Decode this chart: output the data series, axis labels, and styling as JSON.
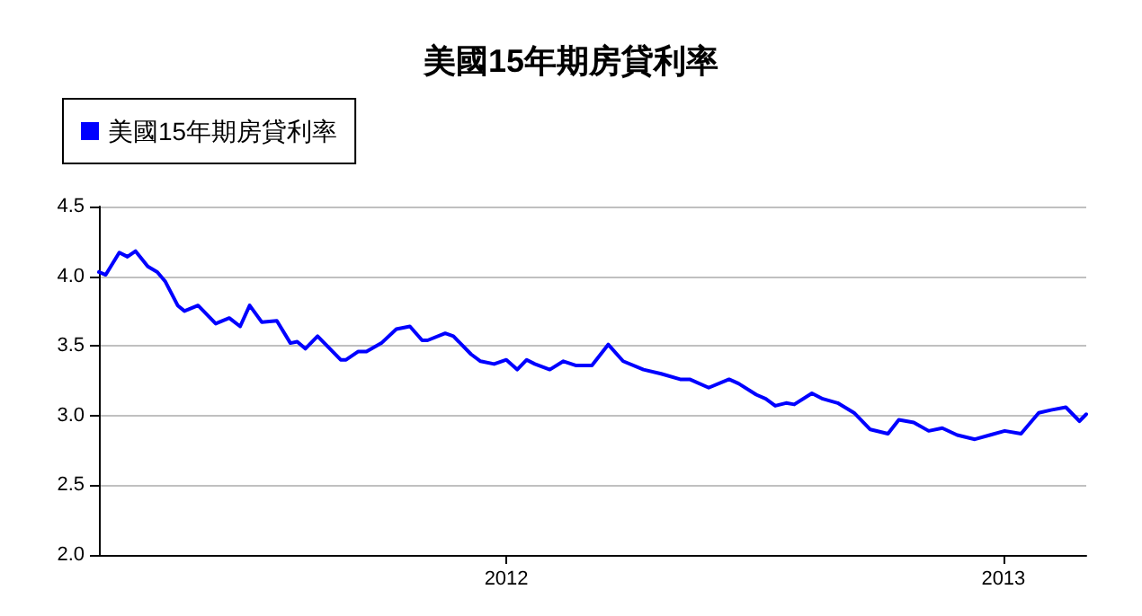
{
  "chart_data": {
    "type": "line",
    "title": "美國15年期房貸利率",
    "x": [
      "2011-03-07",
      "2011-03-12",
      "2011-03-22",
      "2011-03-28",
      "2011-04-03",
      "2011-04-12",
      "2011-04-19",
      "2011-04-25",
      "2011-05-04",
      "2011-05-09",
      "2011-05-19",
      "2011-06-01",
      "2011-06-11",
      "2011-06-19",
      "2011-06-26",
      "2011-07-05",
      "2011-07-16",
      "2011-07-26",
      "2011-07-31",
      "2011-08-06",
      "2011-08-15",
      "2011-08-21",
      "2011-09-01",
      "2011-09-05",
      "2011-09-14",
      "2011-09-20",
      "2011-10-01",
      "2011-10-12",
      "2011-10-22",
      "2011-10-31",
      "2011-11-04",
      "2011-11-17",
      "2011-11-23",
      "2011-12-06",
      "2011-12-13",
      "2011-12-23",
      "2012-01-01",
      "2012-01-09",
      "2012-01-16",
      "2012-01-22",
      "2012-02-02",
      "2012-02-12",
      "2012-02-21",
      "2012-03-04",
      "2012-03-16",
      "2012-03-27",
      "2012-04-11",
      "2012-04-24",
      "2012-05-08",
      "2012-05-15",
      "2012-05-29",
      "2012-06-13",
      "2012-06-20",
      "2012-07-03",
      "2012-07-10",
      "2012-07-17",
      "2012-07-25",
      "2012-07-31",
      "2012-08-13",
      "2012-08-21",
      "2012-09-01",
      "2012-09-13",
      "2012-09-25",
      "2012-10-08",
      "2012-10-16",
      "2012-10-27",
      "2012-11-07",
      "2012-11-17",
      "2012-11-28",
      "2012-12-11",
      "2012-12-22",
      "2013-01-02",
      "2013-01-14",
      "2013-01-27",
      "2013-02-05",
      "2013-02-16",
      "2013-02-26",
      "2013-03-03"
    ],
    "series": [
      {
        "name": "美國15年期房貸利率",
        "color": "#0000ff",
        "values": [
          4.03,
          4.01,
          4.17,
          4.14,
          4.18,
          4.07,
          4.03,
          3.96,
          3.79,
          3.75,
          3.79,
          3.66,
          3.7,
          3.64,
          3.79,
          3.67,
          3.68,
          3.52,
          3.53,
          3.48,
          3.57,
          3.51,
          3.4,
          3.4,
          3.46,
          3.46,
          3.52,
          3.62,
          3.64,
          3.54,
          3.54,
          3.59,
          3.57,
          3.44,
          3.39,
          3.37,
          3.4,
          3.33,
          3.4,
          3.37,
          3.33,
          3.39,
          3.36,
          3.36,
          3.51,
          3.39,
          3.33,
          3.3,
          3.26,
          3.26,
          3.2,
          3.26,
          3.23,
          3.15,
          3.12,
          3.07,
          3.09,
          3.08,
          3.16,
          3.12,
          3.09,
          3.02,
          2.9,
          2.87,
          2.97,
          2.95,
          2.89,
          2.91,
          2.86,
          2.83,
          2.86,
          2.89,
          2.87,
          3.02,
          3.04,
          3.06,
          2.96,
          3.01
        ]
      }
    ],
    "xlim": [
      "2011-03-07",
      "2013-03-03"
    ],
    "xticks": [
      "2012",
      "2013"
    ],
    "ylim": [
      2,
      4.5
    ],
    "yticks": [
      {
        "value": 2,
        "label": "2.0"
      },
      {
        "value": 2.5,
        "label": "2.5"
      },
      {
        "value": 3,
        "label": "3.0"
      },
      {
        "value": 3.5,
        "label": "3.5"
      },
      {
        "value": 4,
        "label": "4.0"
      },
      {
        "value": 4.5,
        "label": "4.5"
      }
    ],
    "grid": "y",
    "legend": "top left",
    "marker": "none",
    "line_style": "solid"
  }
}
